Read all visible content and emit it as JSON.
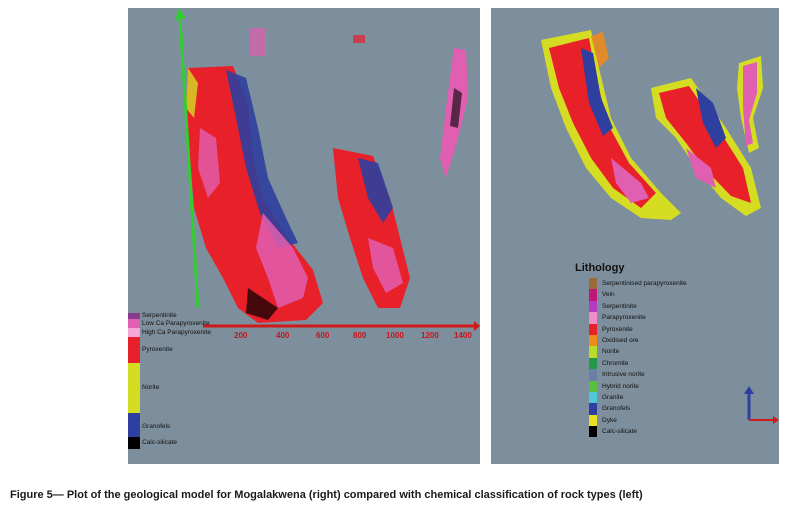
{
  "figure": {
    "caption": "Figure 5— Plot of the geological model for Mogalakwena (right) compared with chemical classification of rock types (left)"
  },
  "left_panel": {
    "legend": [
      {
        "label": "Serpentinite",
        "color": "#8a3b8f"
      },
      {
        "label": "Low Ca Parapyroxenite",
        "color": "#e05fb0"
      },
      {
        "label": "High Ca Parapyroxenite",
        "color": "#f5a8d8"
      },
      {
        "label": "Pyroxenite",
        "color": "#e8202a"
      },
      {
        "label": "Norite",
        "color": "#d4dd22"
      },
      {
        "label": "Granofels",
        "color": "#2e3fa0"
      },
      {
        "label": "Calc-silicate",
        "color": "#000000"
      }
    ],
    "x_ticks": [
      "200",
      "400",
      "600",
      "800",
      "1000",
      "1200",
      "1400"
    ]
  },
  "right_panel": {
    "legend_title": "Lithology",
    "legend": [
      {
        "label": "Serpentinised parapyroxenite",
        "color": "#9a6a3a"
      },
      {
        "label": "Vein",
        "color": "#c0177a"
      },
      {
        "label": "Serpentinite",
        "color": "#b43cc4"
      },
      {
        "label": "Parapyroxenite",
        "color": "#f08cc8"
      },
      {
        "label": "Pyroxenite",
        "color": "#e8202a"
      },
      {
        "label": "Oxidised ore",
        "color": "#f08a18"
      },
      {
        "label": "Norite",
        "color": "#b8dc28"
      },
      {
        "label": "Chromite",
        "color": "#229944"
      },
      {
        "label": "Intrusive norite",
        "color": "#6a7fa8"
      },
      {
        "label": "Hybrid norite",
        "color": "#58c040"
      },
      {
        "label": "Granite",
        "color": "#4ec8d8"
      },
      {
        "label": "Granofels",
        "color": "#2e3fa0"
      },
      {
        "label": "Dyke",
        "color": "#e8e020"
      },
      {
        "label": "Calc-silicate",
        "color": "#000000"
      }
    ]
  }
}
